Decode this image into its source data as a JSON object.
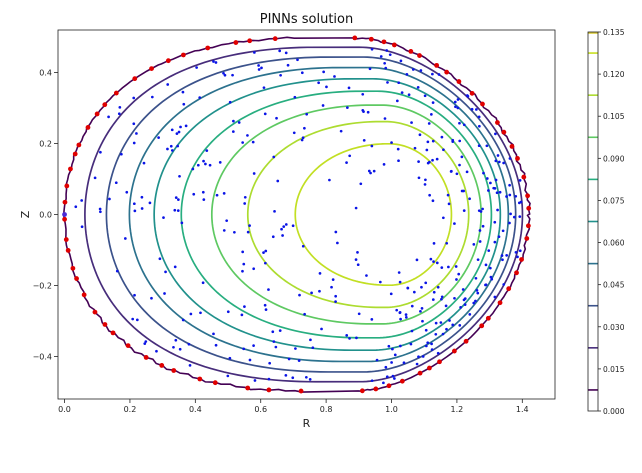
{
  "chart_data": {
    "type": "contour",
    "title": "PINNs solution",
    "xlabel": "R",
    "ylabel": "Z",
    "xlim": [
      -0.02,
      1.5
    ],
    "ylim": [
      -0.52,
      0.52
    ],
    "x_ticks": [
      0.0,
      0.2,
      0.4,
      0.6,
      0.8,
      1.0,
      1.2,
      1.4
    ],
    "x_tick_labels": [
      "0.0",
      "0.2",
      "0.4",
      "0.6",
      "0.8",
      "1.0",
      "1.2",
      "1.4"
    ],
    "y_ticks": [
      -0.4,
      -0.2,
      0.0,
      0.2,
      0.4
    ],
    "y_tick_labels": [
      "−0.4",
      "−0.2",
      "0.0",
      "0.2",
      "0.4"
    ],
    "colorbar": {
      "min": 0.0,
      "max": 0.135,
      "ticks": [
        0.0,
        0.015,
        0.03,
        0.045,
        0.06,
        0.075,
        0.09,
        0.105,
        0.12,
        0.135
      ],
      "tick_labels": [
        "0.000",
        "0.015",
        "0.030",
        "0.045",
        "0.060",
        "0.075",
        "0.090",
        "0.105",
        "0.120",
        "0.135"
      ],
      "colormap": "viridis"
    },
    "contour_levels": [
      0.0,
      0.015,
      0.03,
      0.045,
      0.06,
      0.075,
      0.09,
      0.105,
      0.12
    ],
    "contour_colors": [
      "#440154",
      "#472d7b",
      "#3b528b",
      "#2c728e",
      "#21918c",
      "#28ae80",
      "#5ec962",
      "#addc30",
      "#c2df23"
    ],
    "boundary": {
      "r0": 1.0,
      "a": 0.42,
      "kappa": 1.185,
      "delta": 0.78
    },
    "magnetic_axis": [
      1.0,
      0.0
    ],
    "markers": {
      "boundary_points_color": "#e00000",
      "collocation_points_color": "#0a14e6",
      "boundary_points_count": 70,
      "collocation_points_count": 420
    },
    "grid": false
  }
}
